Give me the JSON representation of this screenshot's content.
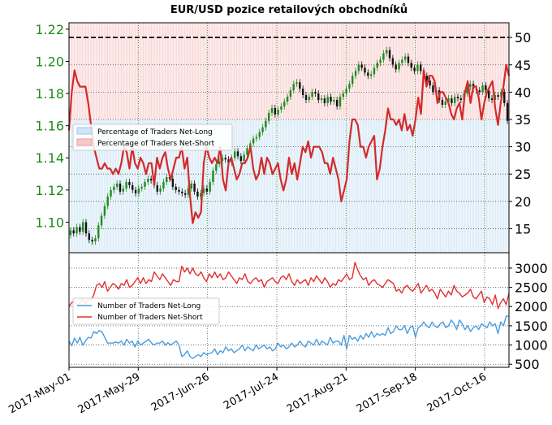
{
  "chart_data": [
    {
      "panel": "top",
      "type": "candlestick+line",
      "title": "EUR/USD pozice retailových obchodníků",
      "left_axis": {
        "ticks": [
          1.1,
          1.12,
          1.14,
          1.16,
          1.18,
          1.2,
          1.22
        ],
        "tick_labels": [
          "1.10",
          "1.12",
          "1.14",
          "1.16",
          "1.18",
          "1.20",
          "1.22"
        ],
        "range": [
          1.081,
          1.224
        ],
        "color": "#1e8c1e"
      },
      "right_axis": {
        "ticks": [
          15,
          20,
          25,
          30,
          35,
          40,
          45,
          50
        ],
        "tick_labels": [
          "15",
          "20",
          "25",
          "30",
          "35",
          "40",
          "45",
          "50"
        ],
        "range": [
          10.6,
          52.7
        ]
      },
      "reference_line": {
        "value": 50,
        "style": "dashed",
        "color": "#000000"
      },
      "legend": {
        "placement": "left-middle",
        "entries": [
          {
            "label": "Percentage of Traders Net-Long",
            "color": "#cfe6f7"
          },
          {
            "label": "Percentage of Traders Net-Short",
            "color": "#f7caca"
          }
        ]
      },
      "price_close": [
        1.095,
        1.093,
        1.097,
        1.094,
        1.1,
        1.093,
        1.089,
        1.088,
        1.09,
        1.098,
        1.104,
        1.11,
        1.116,
        1.12,
        1.122,
        1.124,
        1.119,
        1.121,
        1.125,
        1.123,
        1.12,
        1.118,
        1.121,
        1.122,
        1.125,
        1.127,
        1.126,
        1.123,
        1.119,
        1.121,
        1.125,
        1.128,
        1.127,
        1.122,
        1.12,
        1.119,
        1.118,
        1.117,
        1.121,
        1.124,
        1.119,
        1.116,
        1.118,
        1.121,
        1.119,
        1.125,
        1.132,
        1.136,
        1.138,
        1.14,
        1.139,
        1.137,
        1.14,
        1.144,
        1.141,
        1.138,
        1.142,
        1.146,
        1.149,
        1.152,
        1.153,
        1.156,
        1.159,
        1.163,
        1.168,
        1.171,
        1.167,
        1.17,
        1.172,
        1.175,
        1.178,
        1.182,
        1.186,
        1.187,
        1.183,
        1.179,
        1.176,
        1.178,
        1.181,
        1.18,
        1.176,
        1.177,
        1.174,
        1.178,
        1.175,
        1.176,
        1.172,
        1.178,
        1.18,
        1.183,
        1.186,
        1.191,
        1.194,
        1.198,
        1.196,
        1.193,
        1.191,
        1.192,
        1.196,
        1.199,
        1.201,
        1.205,
        1.207,
        1.202,
        1.198,
        1.195,
        1.199,
        1.201,
        1.203,
        1.199,
        1.196,
        1.194,
        1.198,
        1.194,
        1.191,
        1.188,
        1.185,
        1.181,
        1.182,
        1.176,
        1.173,
        1.175,
        1.177,
        1.174,
        1.178,
        1.177,
        1.176,
        1.18,
        1.184,
        1.186,
        1.183,
        1.182,
        1.181,
        1.185,
        1.182,
        1.177,
        1.176,
        1.179,
        1.178,
        1.181,
        1.174,
        1.163
      ],
      "net_short_pct": [
        33,
        40,
        44,
        42,
        41,
        41,
        41,
        38,
        34,
        30,
        28,
        26,
        26,
        27,
        26,
        26,
        25,
        26,
        25,
        27,
        30,
        29,
        26,
        30,
        27,
        26,
        28,
        27,
        25,
        27,
        27,
        23,
        28,
        26,
        28,
        29,
        26,
        24,
        26,
        28,
        28,
        30,
        26,
        28,
        21,
        16,
        18,
        17,
        18,
        27,
        30,
        28,
        27,
        28,
        27,
        30,
        24,
        22,
        27,
        28,
        26,
        24,
        25,
        27,
        27,
        28,
        30,
        26,
        24,
        25,
        28,
        25,
        28,
        27,
        25,
        26,
        27,
        24,
        22,
        24,
        28,
        25,
        27,
        24,
        27,
        30,
        29,
        31,
        28,
        30,
        30,
        30,
        29,
        27,
        27,
        25,
        28,
        26,
        24,
        20,
        22,
        24,
        31,
        35,
        35,
        34,
        30,
        30,
        28,
        30,
        31,
        32,
        24,
        26,
        30,
        33,
        37,
        35,
        35,
        34,
        35,
        33,
        36,
        33,
        34,
        32,
        35,
        39,
        36,
        44,
        41,
        43,
        43,
        42,
        38,
        40,
        40,
        39,
        38,
        36,
        35,
        37,
        38,
        35,
        40,
        42,
        38,
        41,
        41,
        39,
        35,
        38,
        40,
        41,
        42,
        37,
        34,
        38,
        41,
        45,
        43
      ],
      "x_tick_labels": [
        "2017-May-01",
        "2017-May-29",
        "2017-Jun-26",
        "2017-Jul-24",
        "2017-Aug-21",
        "2017-Sep-18",
        "2017-Oct-16"
      ]
    },
    {
      "panel": "bottom",
      "type": "line",
      "y_axis": {
        "ticks": [
          500,
          1000,
          1500,
          2000,
          2500,
          3000
        ],
        "tick_labels": [
          "500",
          "1000",
          "1500",
          "2000",
          "2500",
          "3000"
        ],
        "range": [
          420,
          3400
        ]
      },
      "legend": {
        "placement": "left-middle"
      },
      "series": [
        {
          "name": "Number of Traders Net-Long",
          "color": "#4a9de0",
          "values": [
            1100,
            980,
            1180,
            1050,
            1200,
            1000,
            1100,
            1200,
            1180,
            1350,
            1300,
            1380,
            1340,
            1200,
            1050,
            1050,
            1050,
            1080,
            1050,
            1100,
            1000,
            1150,
            1050,
            1100,
            950,
            1100,
            1000,
            1050,
            1100,
            1150,
            1050,
            1000,
            1050,
            1050,
            1100,
            1000,
            1060,
            1000,
            1050,
            1100,
            1000,
            700,
            750,
            850,
            700,
            650,
            700,
            750,
            700,
            800,
            750,
            780,
            800,
            900,
            750,
            850,
            800,
            950,
            850,
            900,
            800,
            850,
            900,
            1000,
            850,
            950,
            900,
            850,
            1000,
            900,
            950,
            1000,
            900,
            950,
            850,
            900,
            1050,
            950,
            1000,
            900,
            950,
            1050,
            950,
            1000,
            1100,
            1000,
            950,
            1100,
            1050,
            1000,
            1150,
            1000,
            1100,
            1050,
            1000,
            1200,
            1050,
            1100,
            1100,
            1000,
            1250,
            900,
            1250,
            1150,
            1200,
            1100,
            1250,
            1150,
            1300,
            1200,
            1350,
            1200,
            1300,
            1250,
            1300,
            1250,
            1450,
            1300,
            1350,
            1500,
            1400,
            1400,
            1500,
            1300,
            1450,
            1500,
            1200,
            1450,
            1500,
            1600,
            1500,
            1450,
            1600,
            1500,
            1450,
            1550,
            1600,
            1450,
            1500,
            1650,
            1550,
            1400,
            1650,
            1550,
            1400,
            1500,
            1350,
            1450,
            1500,
            1400,
            1550,
            1500,
            1450,
            1600,
            1500,
            1550,
            1300,
            1600,
            1500,
            1750,
            1750
          ]
        },
        {
          "name": "Number of Traders Net-Short",
          "color": "#e03030",
          "values": [
            2000,
            2100,
            2150,
            2000,
            2100,
            2200,
            2050,
            2200,
            2150,
            2300,
            2550,
            2600,
            2500,
            2650,
            2400,
            2500,
            2600,
            2550,
            2450,
            2600,
            2550,
            2700,
            2500,
            2550,
            2650,
            2750,
            2600,
            2750,
            2600,
            2700,
            2650,
            2900,
            2800,
            2700,
            2850,
            2750,
            2650,
            2550,
            2700,
            2650,
            2650,
            3050,
            2900,
            3000,
            2850,
            3000,
            2850,
            2800,
            2900,
            2750,
            2650,
            2850,
            2750,
            2900,
            2750,
            2850,
            2700,
            2750,
            2900,
            2800,
            2700,
            2600,
            2750,
            2700,
            2850,
            2650,
            2600,
            2700,
            2750,
            2650,
            2700,
            2500,
            2650,
            2700,
            2750,
            2650,
            2600,
            2750,
            2800,
            2700,
            2850,
            2650,
            2550,
            2700,
            2600,
            2650,
            2700,
            2550,
            2750,
            2650,
            2800,
            2700,
            2600,
            2750,
            2650,
            2500,
            2600,
            2550,
            2700,
            2650,
            2750,
            2850,
            2700,
            2750,
            3150,
            2950,
            2800,
            2700,
            2750,
            2550,
            2650,
            2700,
            2600,
            2550,
            2500,
            2600,
            2700,
            2650,
            2600,
            2400,
            2450,
            2350,
            2500,
            2550,
            2450,
            2400,
            2500,
            2600,
            2350,
            2450,
            2550,
            2400,
            2450,
            2350,
            2200,
            2450,
            2350,
            2250,
            2400,
            2300,
            2550,
            2400,
            2350,
            2250,
            2300,
            2350,
            2450,
            2250,
            2200,
            2300,
            2400,
            2100,
            2250,
            2200,
            2050,
            2300,
            1950,
            2100,
            2200,
            2050,
            2350
          ]
        }
      ],
      "x_tick_labels": [
        "2017-May-01",
        "2017-May-29",
        "2017-Jun-26",
        "2017-Jul-24",
        "2017-Aug-21",
        "2017-Sep-18",
        "2017-Oct-16"
      ]
    }
  ]
}
